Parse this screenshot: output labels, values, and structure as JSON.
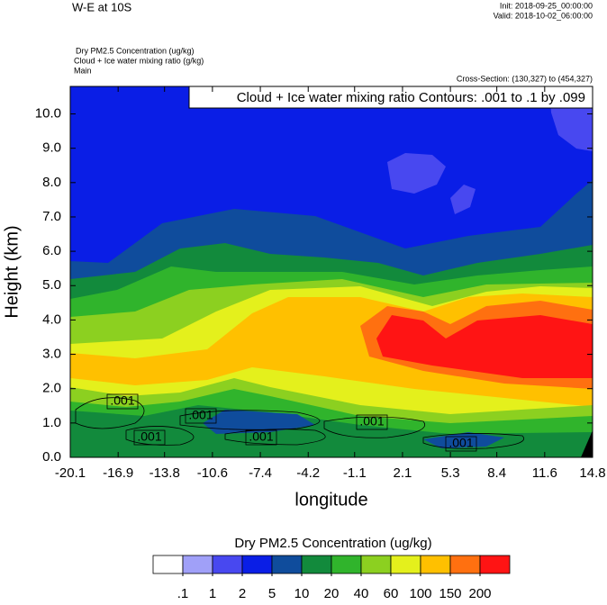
{
  "chart_data": {
    "type": "contour",
    "title": "W-E at 10S",
    "init": "Init: 2018-09-25_00:00:00",
    "valid": "Valid: 2018-10-02_06:00:00",
    "field_labels": [
      "Dry PM2.5 Concentration   (ug/kg)",
      "Cloud + Ice water mixing ratio   (g/kg)",
      "Main"
    ],
    "cross_section": "Cross-Section: (130,327) to (454,327)",
    "contour_label": "Cloud + Ice water mixing ratio Contours: .001 to .1 by .099",
    "ylabel": "Height (km)",
    "xlabel": "longitude",
    "xlim": [
      -20.1,
      14.8
    ],
    "ylim": [
      0,
      10.8
    ],
    "xticks": [
      -20.1,
      -16.9,
      -13.8,
      -10.6,
      -7.4,
      -4.2,
      -1.1,
      2.1,
      5.3,
      8.4,
      11.6,
      14.8
    ],
    "yticks": [
      {
        "value": 0,
        "label": "0.0"
      },
      {
        "value": 1,
        "label": "1.0"
      },
      {
        "value": 2,
        "label": "2.0"
      },
      {
        "value": 3,
        "label": "3.0"
      },
      {
        "value": 4,
        "label": "4.0"
      },
      {
        "value": 5,
        "label": "5.0"
      },
      {
        "value": 6,
        "label": "6.0"
      },
      {
        "value": 7,
        "label": "7.0"
      },
      {
        "value": 8,
        "label": "8.0"
      },
      {
        "value": 9,
        "label": "9.0"
      },
      {
        "value": 10,
        "label": "10.0"
      }
    ],
    "contour_labels": [
      ".001",
      ".001",
      ".001",
      ".001",
      ".001",
      ".001"
    ],
    "colorbar": {
      "title": "Dry PM2.5 Concentration  (ug/kg)",
      "levels": [
        {
          "value": 0.1,
          "label": ".1"
        },
        1,
        2,
        5,
        10,
        20,
        40,
        60,
        100,
        150,
        200
      ],
      "colors": [
        "#ffffff",
        "#a0a0f8",
        "#4848f0",
        "#0a1ee6",
        "#0f4c9c",
        "#128a3c",
        "#30b42c",
        "#8cd020",
        "#e4f01c",
        "#ffc000",
        "#ff7010",
        "#ff1414"
      ]
    }
  }
}
